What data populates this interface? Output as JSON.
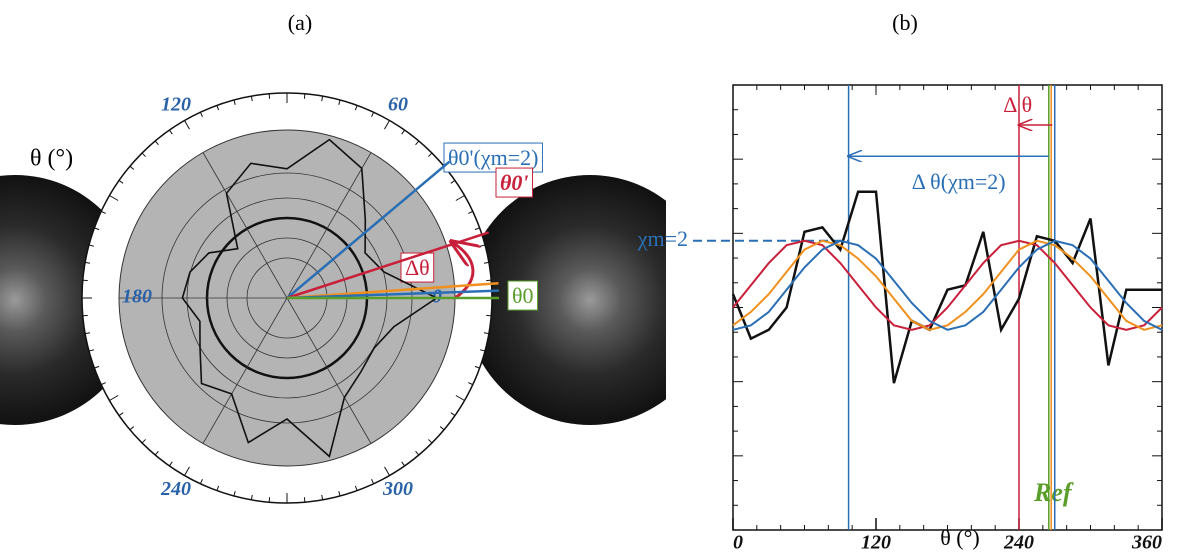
{
  "chart_data": [
    {
      "type": "polar",
      "title": "(a)",
      "angle_label": "θ (°)",
      "theta": [
        0,
        15,
        30,
        45,
        60,
        75,
        90,
        105,
        120,
        135,
        150,
        165,
        180,
        195,
        210,
        225,
        240,
        255,
        270,
        285,
        300,
        315,
        330,
        345,
        360
      ],
      "r": [
        7.3,
        4.9,
        4.4,
        5.4,
        7.3,
        8.0,
        6.3,
        6.8,
        5.9,
        3.4,
        4.4,
        4.9,
        5.1,
        4.4,
        4.9,
        5.9,
        5.4,
        7.3,
        5.9,
        8.0,
        5.6,
        5.1,
        4.9,
        5.4,
        7.3
      ],
      "rlim": [
        0,
        10
      ],
      "angle_ticks": [
        0,
        60,
        120,
        180,
        240,
        300
      ],
      "curve_color": "#111111",
      "rays": [
        {
          "name": "θ0'(χm=2)",
          "angle": 40,
          "color": "#2a6fb5"
        },
        {
          "name": "θ0'",
          "angle": 18,
          "color": "#c8203a"
        },
        {
          "angle": 4,
          "color": "#f0901e"
        },
        {
          "angle": 2,
          "color": "#2a6fb5"
        },
        {
          "name": "θ0",
          "angle": 0,
          "color": "#5a9e2a"
        }
      ],
      "annotation": "Δθ"
    },
    {
      "type": "line",
      "title": "(b)",
      "x_label": "θ (°)",
      "x": [
        0,
        15,
        30,
        45,
        60,
        75,
        90,
        105,
        120,
        135,
        150,
        165,
        180,
        195,
        210,
        225,
        240,
        255,
        270,
        285,
        300,
        315,
        330,
        345,
        360
      ],
      "xlim": [
        0,
        360
      ],
      "xticks": [
        0,
        120,
        240,
        360
      ],
      "ylim": [
        0,
        10
      ],
      "series": [
        {
          "color": "#111111",
          "values": [
            5.3,
            4.3,
            4.5,
            5.0,
            6.7,
            6.8,
            6.3,
            7.6,
            7.6,
            3.3,
            4.7,
            4.5,
            5.4,
            5.5,
            6.7,
            4.5,
            5.2,
            6.6,
            6.5,
            6.0,
            7.0,
            3.7,
            5.4,
            5.4,
            5.4
          ]
        },
        {
          "color": "#c8203a",
          "values": [
            5.0,
            5.5,
            6.0,
            6.4,
            6.5,
            6.4,
            6.0,
            5.5,
            5.0,
            4.6,
            4.5,
            4.6,
            5.0,
            5.5,
            6.0,
            6.4,
            6.5,
            6.4,
            6.0,
            5.5,
            5.0,
            4.6,
            4.5,
            4.6,
            5.0
          ]
        },
        {
          "color": "#f0901e",
          "values": [
            4.6,
            4.9,
            5.3,
            5.8,
            6.3,
            6.5,
            6.4,
            6.1,
            5.7,
            5.2,
            4.7,
            4.5,
            4.6,
            4.9,
            5.3,
            5.8,
            6.3,
            6.5,
            6.4,
            6.1,
            5.7,
            5.2,
            4.7,
            4.5,
            4.6
          ]
        },
        {
          "color": "#2a6fb5",
          "values": [
            4.5,
            4.6,
            4.9,
            5.4,
            5.9,
            6.3,
            6.5,
            6.4,
            6.1,
            5.6,
            5.1,
            4.7,
            4.5,
            4.6,
            4.9,
            5.4,
            5.9,
            6.3,
            6.5,
            6.4,
            6.1,
            5.6,
            5.1,
            4.7,
            4.5
          ]
        }
      ],
      "vlines": [
        {
          "x": 97,
          "color": "#2a6fb5"
        },
        {
          "x": 240,
          "color": "#c8203a"
        },
        {
          "x": 265,
          "color": "#5a9e2a"
        },
        {
          "x": 267,
          "color": "#f0901e"
        },
        {
          "x": 270,
          "color": "#2a6fb5"
        }
      ],
      "arrows": [
        {
          "label": "Δ θ(χm=2)",
          "from": 265,
          "to": 97,
          "y": 8.4,
          "color": "#2a6fb5"
        },
        {
          "label": "Δ θ",
          "from": 268,
          "to": 240,
          "y": 9.1,
          "color": "#c8203a"
        }
      ],
      "level": {
        "label": "χm=2",
        "y": 6.5,
        "to": 97,
        "color": "#2a6fb5"
      },
      "ref_label": "Ref"
    }
  ]
}
